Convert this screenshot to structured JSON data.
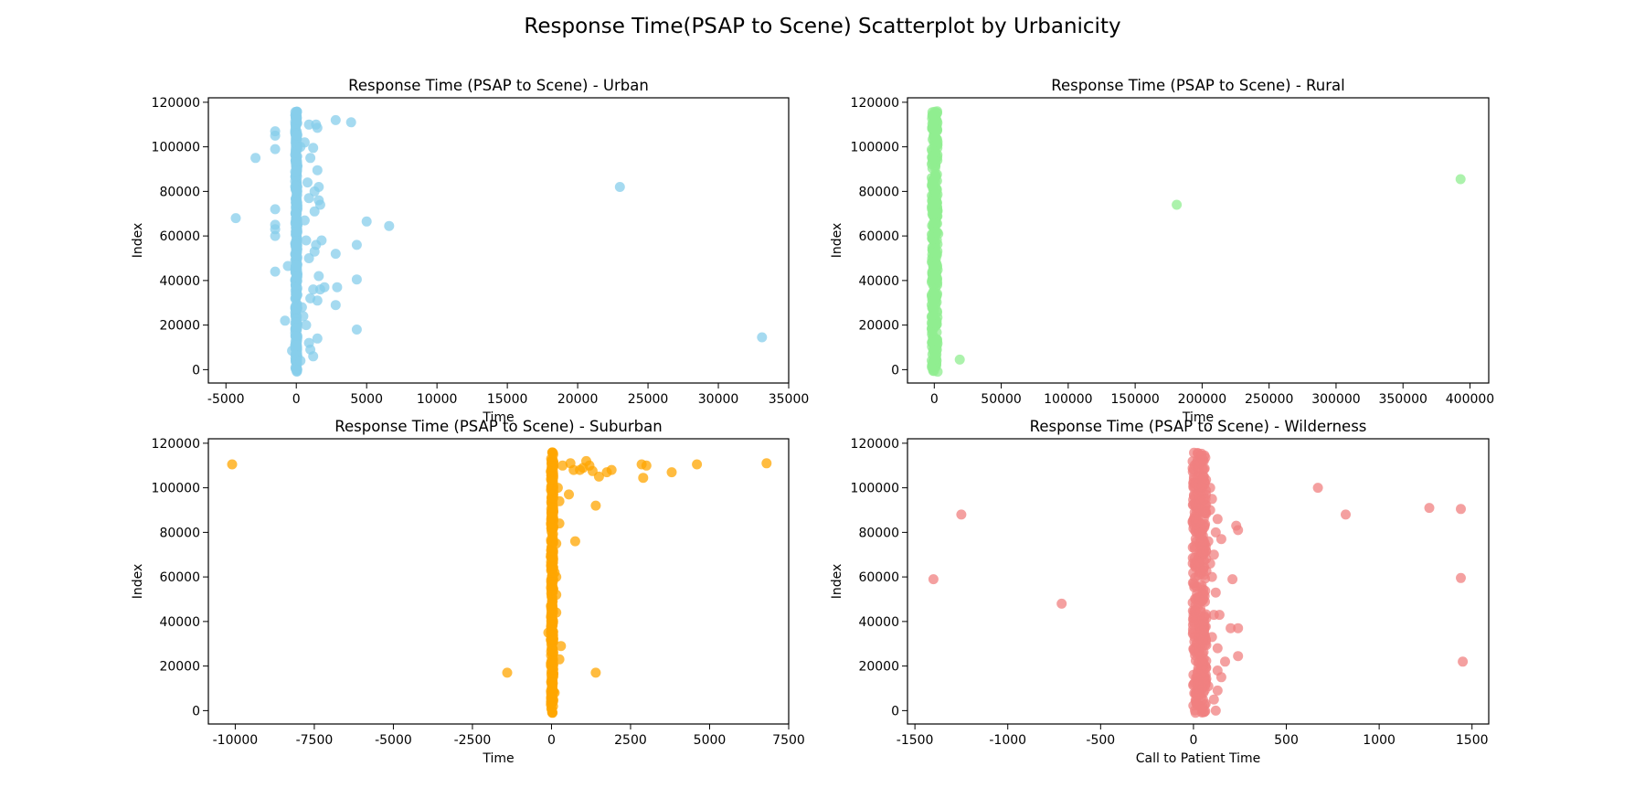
{
  "figure": {
    "suptitle": "Response Time(PSAP to Scene) Scatterplot by Urbanicity"
  },
  "chart_data": [
    {
      "type": "scatter",
      "title": "Response Time (PSAP to Scene) - Urban",
      "xlabel": "Time",
      "ylabel": "Index",
      "color": "#87ceeb",
      "xlim": [
        -6250,
        35000
      ],
      "ylim": [
        -6000,
        122000
      ],
      "xticks": [
        -5000,
        0,
        5000,
        10000,
        15000,
        20000,
        25000,
        30000,
        35000
      ],
      "yticks": [
        0,
        20000,
        40000,
        60000,
        80000,
        100000,
        120000
      ],
      "band": {
        "x_min": -80,
        "x_max": 80,
        "y_min": -1000,
        "y_max": 116000
      },
      "series": [
        {
          "x": [
            -4300,
            -2900,
            -1500,
            -1500,
            -1500,
            -1500,
            -1500,
            -1500,
            -1500,
            -1500,
            -600,
            -800,
            -300,
            900,
            1400,
            1500,
            2800,
            2800,
            2900,
            2800,
            3900,
            4300,
            4300,
            4300,
            5000,
            6600,
            1500,
            1200,
            1000,
            800,
            1600,
            1300,
            900,
            1600,
            1700,
            1300,
            600,
            700,
            1400,
            1300,
            900,
            1800,
            1600,
            1200,
            1500,
            1700,
            1000,
            2000,
            400,
            500,
            700,
            1500,
            900,
            1000,
            1200,
            300,
            300,
            600,
            23000,
            33100
          ],
          "y": [
            68000,
            95000,
            107000,
            105000,
            99000,
            72000,
            65000,
            63000,
            60000,
            44000,
            46500,
            22000,
            8500,
            110000,
            110000,
            108500,
            112000,
            52000,
            37000,
            29000,
            111000,
            56000,
            40500,
            18000,
            66500,
            64500,
            89500,
            99500,
            95000,
            84000,
            82000,
            80000,
            77000,
            76000,
            74000,
            71000,
            67000,
            58000,
            56000,
            53000,
            50000,
            58000,
            42000,
            36000,
            31000,
            36000,
            32000,
            37000,
            28000,
            24000,
            20000,
            14000,
            12000,
            9000,
            6000,
            4000,
            100000,
            102000,
            82000,
            14500
          ]
        }
      ]
    },
    {
      "type": "scatter",
      "title": "Response Time (PSAP to Scene) - Rural",
      "xlabel": "Time",
      "ylabel": "Index",
      "color": "#90ee90",
      "xlim": [
        -20000,
        414000
      ],
      "ylim": [
        -6000,
        122000
      ],
      "xticks": [
        0,
        50000,
        100000,
        150000,
        200000,
        250000,
        300000,
        350000,
        400000
      ],
      "yticks": [
        0,
        20000,
        40000,
        60000,
        80000,
        100000,
        120000
      ],
      "band": {
        "x_min": -2000,
        "x_max": 2500,
        "y_min": -1000,
        "y_max": 116000
      },
      "series": [
        {
          "x": [
            -1000,
            3000,
            2000,
            1000,
            -2000,
            2000,
            19000,
            181000,
            393000
          ],
          "y": [
            85000,
            61000,
            52000,
            32000,
            21000,
            9000,
            4500,
            74000,
            85500
          ]
        }
      ]
    },
    {
      "type": "scatter",
      "title": "Response Time (PSAP to Scene) - Suburban",
      "xlabel": "Time",
      "ylabel": "Index",
      "color": "#ffa500",
      "xlim": [
        -10850,
        7500
      ],
      "ylim": [
        -6000,
        122000
      ],
      "xticks": [
        -10000,
        -7500,
        -5000,
        -2500,
        0,
        2500,
        5000,
        7500
      ],
      "yticks": [
        0,
        20000,
        40000,
        60000,
        80000,
        100000,
        120000
      ],
      "band": {
        "x_min": -20,
        "x_max": 60,
        "y_min": -1000,
        "y_max": 116000
      },
      "series": [
        {
          "x": [
            -10100,
            -1400,
            1400,
            1400,
            750,
            250,
            250,
            550,
            350,
            900,
            1000,
            1200,
            1500,
            1750,
            1900,
            2850,
            2900,
            3000,
            3800,
            4600,
            6800,
            600,
            700,
            1100,
            1300,
            -100,
            150,
            300,
            150,
            100,
            150,
            250,
            100,
            150,
            200
          ],
          "y": [
            110500,
            17000,
            17000,
            92000,
            76000,
            84000,
            94000,
            97000,
            110000,
            108000,
            109000,
            110000,
            105000,
            107000,
            108000,
            110500,
            104500,
            110000,
            107000,
            110500,
            111000,
            111000,
            108000,
            112000,
            107500,
            35000,
            44000,
            29000,
            60000,
            62000,
            52000,
            23000,
            8000,
            75000,
            100000
          ]
        }
      ]
    },
    {
      "type": "scatter",
      "title": "Response Time (PSAP to Scene) - Wilderness",
      "xlabel": "Call to Patient Time",
      "ylabel": "Index",
      "color": "#f08080",
      "xlim": [
        -1540,
        1590
      ],
      "ylim": [
        -6000,
        122000
      ],
      "xticks": [
        -1500,
        -1000,
        -500,
        0,
        500,
        1000,
        1500
      ],
      "yticks": [
        0,
        20000,
        40000,
        60000,
        80000,
        100000,
        120000
      ],
      "band": {
        "x_min": -5,
        "x_max": 70,
        "y_min": -1000,
        "y_max": 116000
      },
      "series": [
        {
          "x": [
            -1400,
            -1250,
            -710,
            670,
            820,
            1270,
            1440,
            1440,
            1450,
            230,
            240,
            210,
            200,
            240,
            240,
            150,
            130,
            120,
            100,
            90,
            110,
            140,
            130,
            120,
            90,
            100,
            120,
            80,
            90,
            130,
            170,
            150,
            110,
            80,
            100,
            130,
            110
          ],
          "y": [
            59000,
            88000,
            48000,
            100000,
            88000,
            91000,
            90500,
            59500,
            22000,
            83000,
            81000,
            59000,
            37000,
            37000,
            24500,
            77000,
            86000,
            53000,
            60000,
            90000,
            43000,
            43000,
            18000,
            0,
            100000,
            95000,
            80000,
            76000,
            66000,
            28000,
            22000,
            15000,
            5000,
            11000,
            33000,
            9000,
            70000
          ]
        }
      ]
    }
  ]
}
